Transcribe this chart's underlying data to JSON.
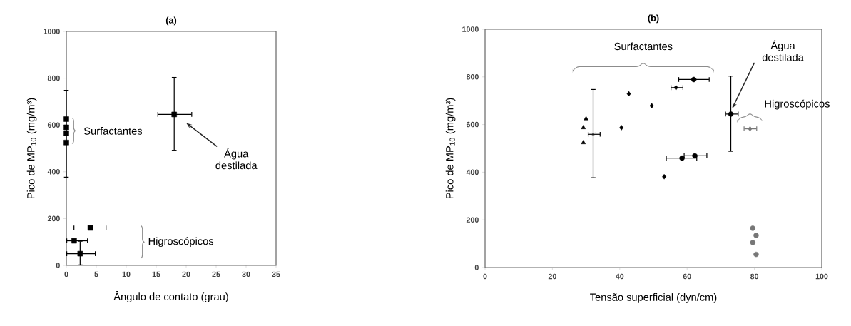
{
  "chart_data": [
    {
      "type": "scatter",
      "title": "(a)",
      "xlabel": "Ângulo de contato (grau)",
      "ylabel": "Pico de MP$_{10}$ (mg/m³)",
      "xlim": [
        0,
        35
      ],
      "xticks": [
        0,
        5,
        10,
        15,
        20,
        25,
        30,
        35
      ],
      "ylim": [
        0,
        1000
      ],
      "yticks": [
        0,
        200,
        400,
        600,
        800,
        1000
      ],
      "series": [
        {
          "marker": "square",
          "color": "#000000",
          "x": [
            0,
            0,
            0,
            0
          ],
          "values": [
            625,
            590,
            565,
            525
          ],
          "errors": [
            null,
            [
              375,
              750
            ],
            null,
            null
          ]
        },
        {
          "marker": "square",
          "color": "#000000",
          "x": [
            18
          ],
          "values": [
            645
          ],
          "errors": [
            [
              490,
              805
            ]
          ],
          "xerrors": [
            [
              15.2,
              21
            ]
          ]
        },
        {
          "marker": "square",
          "color": "#000000",
          "x": [
            4,
            1.3,
            2.3
          ],
          "values": [
            160,
            105,
            50
          ],
          "errors": [
            null,
            null,
            [
              0,
              105
            ]
          ],
          "xerrors": [
            [
              1.2,
              6.7
            ],
            [
              0,
              3.6
            ],
            [
              0,
              4.9
            ]
          ]
        }
      ],
      "annotations": [
        "Surfactantes",
        "Água destilada",
        "Higroscópicos"
      ]
    },
    {
      "type": "scatter",
      "title": "(b)",
      "xlabel": "Tensão superficial (dyn/cm)",
      "ylabel": "Pico de MP$_{10}$ (mg/m³)",
      "xlim": [
        0,
        100
      ],
      "xticks": [
        0,
        20,
        40,
        60,
        80,
        100
      ],
      "ylim": [
        0,
        1000
      ],
      "yticks": [
        0,
        200,
        400,
        600,
        800,
        1000
      ],
      "series": [
        {
          "marker": "triangle",
          "color": "#000000",
          "x": [
            30,
            29.2,
            29.2
          ],
          "values": [
            624,
            587,
            524
          ]
        },
        {
          "marker": "cross",
          "color": "#000000",
          "x": [
            32.1
          ],
          "values": [
            559
          ],
          "errors": [
            [
              375,
              749
            ]
          ],
          "xerrors": [
            [
              30.5,
              34.3
            ]
          ]
        },
        {
          "marker": "diamond",
          "color": "#000000",
          "x": [
            40.5,
            42.7,
            49.5,
            53.2,
            56.7
          ],
          "values": [
            587,
            729,
            679,
            381,
            755
          ],
          "xerrors": [
            null,
            null,
            null,
            null,
            [
              55.1,
              58.9
            ]
          ]
        },
        {
          "marker": "circle",
          "color": "#000000",
          "x": [
            62,
            58.5,
            62.3
          ],
          "values": [
            789,
            459,
            469
          ],
          "xerrors": [
            [
              57.4,
              66.7
            ],
            [
              53.7,
              63
            ],
            [
              59,
              66
            ]
          ]
        },
        {
          "marker": "circle",
          "color": "#000000",
          "x": [
            73
          ],
          "values": [
            644
          ],
          "errors": [
            [
              486,
              805
            ]
          ],
          "xerrors": [
            [
              71.3,
              75.3
            ]
          ]
        },
        {
          "marker": "diamond",
          "color": "#777777",
          "x": [
            78.7
          ],
          "values": [
            582
          ],
          "xerrors": [
            [
              76.8,
              80.8
            ]
          ]
        },
        {
          "marker": "circle",
          "color": "#777777",
          "x": [
            79.5,
            80.5,
            79.5,
            80.5
          ],
          "values": [
            165,
            135,
            105,
            55
          ]
        }
      ],
      "annotations": [
        "Surfactantes",
        "Água destilada",
        "Higroscópicos"
      ]
    }
  ]
}
